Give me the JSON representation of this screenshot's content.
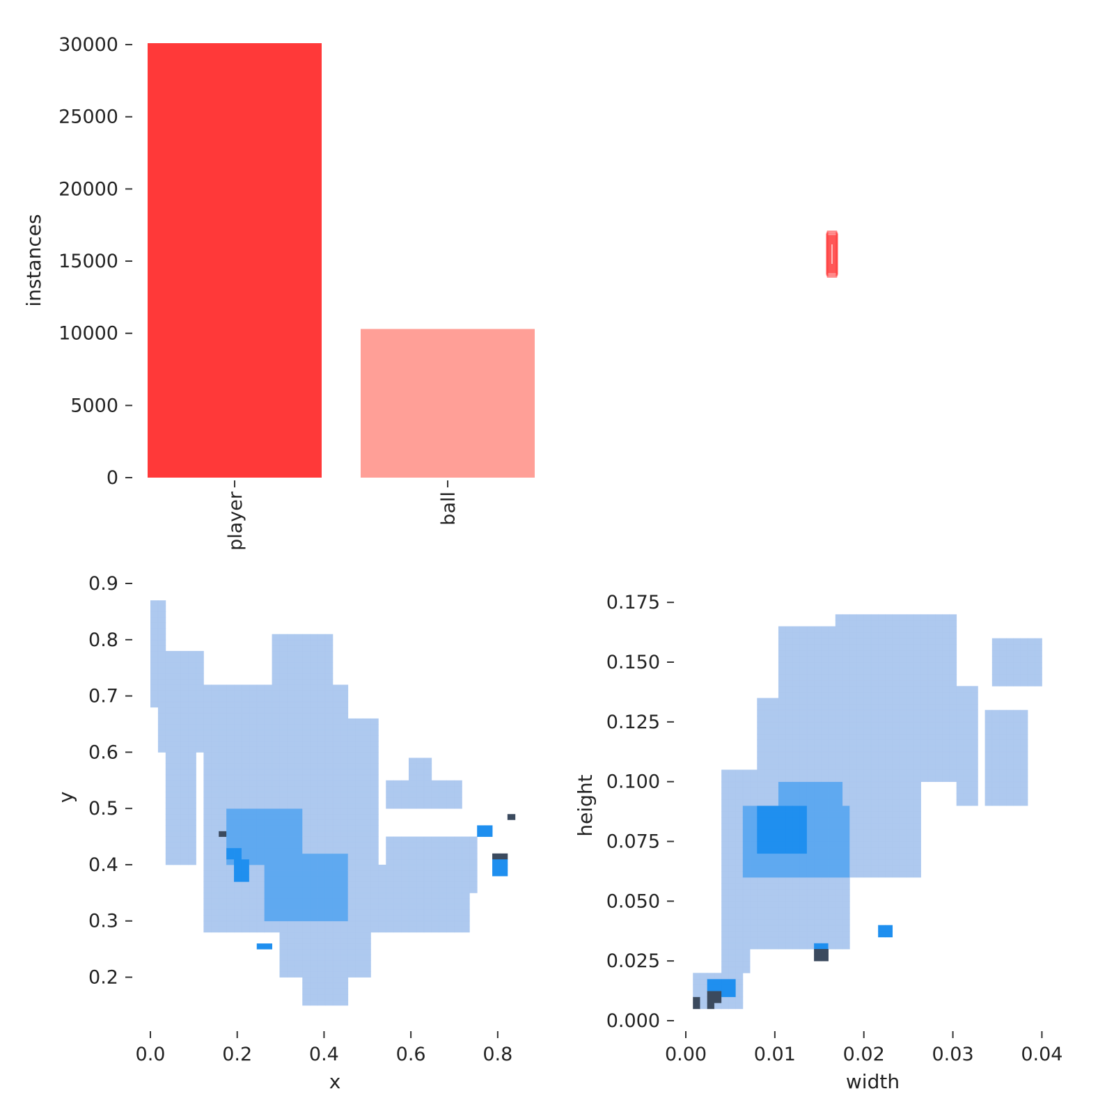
{
  "colors": {
    "bar_player": "#ff3939",
    "bar_ball": "#ff9f97",
    "hist_light": "#aac6ee",
    "hist_mid": "#5fa9f0",
    "hist_strong": "#1f8fef",
    "hist_dark": "#3b4a5e",
    "tick": "#333333"
  },
  "chart_data": [
    {
      "type": "bar",
      "categories": [
        "player",
        "ball"
      ],
      "values": [
        30100,
        10300
      ],
      "ylabel": "instances",
      "xlabel": "",
      "ylim": [
        0,
        30100
      ],
      "yticks": [
        "0",
        "5000",
        "10000",
        "15000",
        "20000",
        "25000",
        "30000"
      ],
      "grid": false
    },
    {
      "type": "other",
      "description_free": true,
      "box": {
        "x_center": 0.5,
        "y_center": 0.5,
        "width": 0.0125,
        "height": 0.085
      },
      "color": "#ff3939"
    },
    {
      "type": "heatmap",
      "xlabel": "x",
      "ylabel": "y",
      "xlim": [
        0.0,
        0.85
      ],
      "ylim": [
        0.14,
        0.9
      ],
      "xticks": [
        "0.0",
        "0.2",
        "0.4",
        "0.6",
        "0.8"
      ],
      "yticks": [
        "0.2",
        "0.3",
        "0.4",
        "0.5",
        "0.6",
        "0.7",
        "0.8",
        "0.9"
      ],
      "bin_size": [
        0.0175,
        0.01
      ],
      "density_regions": [
        {
          "x": [
            0.0,
            0.02
          ],
          "y": [
            0.68,
            0.87
          ],
          "level": 1
        },
        {
          "x": [
            0.02,
            0.12
          ],
          "y": [
            0.6,
            0.78
          ],
          "level": 1
        },
        {
          "x": [
            0.04,
            0.1
          ],
          "y": [
            0.4,
            0.6
          ],
          "level": 1
        },
        {
          "x": [
            0.12,
            0.45
          ],
          "y": [
            0.48,
            0.72
          ],
          "level": 1
        },
        {
          "x": [
            0.13,
            0.52
          ],
          "y": [
            0.28,
            0.5
          ],
          "level": 1
        },
        {
          "x": [
            0.28,
            0.42
          ],
          "y": [
            0.72,
            0.81
          ],
          "level": 1
        },
        {
          "x": [
            0.38,
            0.52
          ],
          "y": [
            0.5,
            0.66
          ],
          "level": 1
        },
        {
          "x": [
            0.45,
            0.72
          ],
          "y": [
            0.28,
            0.4
          ],
          "level": 1
        },
        {
          "x": [
            0.55,
            0.76
          ],
          "y": [
            0.35,
            0.45
          ],
          "level": 1
        },
        {
          "x": [
            0.55,
            0.72
          ],
          "y": [
            0.5,
            0.55
          ],
          "level": 1
        },
        {
          "x": [
            0.3,
            0.5
          ],
          "y": [
            0.2,
            0.3
          ],
          "level": 1
        },
        {
          "x": [
            0.35,
            0.44
          ],
          "y": [
            0.15,
            0.2
          ],
          "level": 1
        },
        {
          "x": [
            0.6,
            0.65
          ],
          "y": [
            0.55,
            0.59
          ],
          "level": 1
        },
        {
          "x": [
            0.26,
            0.44
          ],
          "y": [
            0.3,
            0.42
          ],
          "level": 2
        },
        {
          "x": [
            0.17,
            0.34
          ],
          "y": [
            0.4,
            0.5
          ],
          "level": 2
        },
        {
          "x": [
            0.17,
            0.2
          ],
          "y": [
            0.41,
            0.43
          ],
          "level": 3
        },
        {
          "x": [
            0.2,
            0.23
          ],
          "y": [
            0.37,
            0.41
          ],
          "level": 3
        },
        {
          "x": [
            0.76,
            0.78
          ],
          "y": [
            0.45,
            0.47
          ],
          "level": 3
        },
        {
          "x": [
            0.78,
            0.81
          ],
          "y": [
            0.38,
            0.42
          ],
          "level": 3
        },
        {
          "x": [
            0.25,
            0.27
          ],
          "y": [
            0.25,
            0.26
          ],
          "level": 3
        },
        {
          "x": [
            0.16,
            0.17
          ],
          "y": [
            0.45,
            0.46
          ],
          "level": 4
        },
        {
          "x": [
            0.78,
            0.8
          ],
          "y": [
            0.41,
            0.42
          ],
          "level": 4
        },
        {
          "x": [
            0.83,
            0.84
          ],
          "y": [
            0.48,
            0.49
          ],
          "level": 4
        }
      ],
      "grid": false
    },
    {
      "type": "heatmap",
      "xlabel": "width",
      "ylabel": "height",
      "xlim": [
        0.0,
        0.042
      ],
      "ylim": [
        0.0,
        0.18
      ],
      "xticks": [
        "0.00",
        "0.01",
        "0.02",
        "0.03",
        "0.04"
      ],
      "yticks": [
        "0.000",
        "0.025",
        "0.050",
        "0.075",
        "0.100",
        "0.125",
        "0.150",
        "0.175"
      ],
      "bin_size": [
        0.0008,
        0.0025
      ],
      "density_regions": [
        {
          "x": [
            0.0043,
            0.018
          ],
          "y": [
            0.03,
            0.105
          ],
          "level": 1
        },
        {
          "x": [
            0.008,
            0.026
          ],
          "y": [
            0.06,
            0.135
          ],
          "level": 1
        },
        {
          "x": [
            0.01,
            0.022
          ],
          "y": [
            0.125,
            0.165
          ],
          "level": 1
        },
        {
          "x": [
            0.017,
            0.03
          ],
          "y": [
            0.1,
            0.17
          ],
          "level": 1
        },
        {
          "x": [
            0.026,
            0.033
          ],
          "y": [
            0.1,
            0.14
          ],
          "level": 1
        },
        {
          "x": [
            0.03,
            0.038
          ],
          "y": [
            0.09,
            0.13
          ],
          "level": 1
        },
        {
          "x": [
            0.034,
            0.039
          ],
          "y": [
            0.14,
            0.16
          ],
          "level": 1
        },
        {
          "x": [
            0.001,
            0.006
          ],
          "y": [
            0.005,
            0.02
          ],
          "level": 1
        },
        {
          "x": [
            0.004,
            0.007
          ],
          "y": [
            0.02,
            0.03
          ],
          "level": 1
        },
        {
          "x": [
            0.0065,
            0.018
          ],
          "y": [
            0.06,
            0.09
          ],
          "level": 2
        },
        {
          "x": [
            0.01,
            0.017
          ],
          "y": [
            0.085,
            0.1
          ],
          "level": 2
        },
        {
          "x": [
            0.008,
            0.013
          ],
          "y": [
            0.07,
            0.09
          ],
          "level": 3
        },
        {
          "x": [
            0.002,
            0.005
          ],
          "y": [
            0.01,
            0.016
          ],
          "level": 3
        },
        {
          "x": [
            0.0215,
            0.023
          ],
          "y": [
            0.035,
            0.04
          ],
          "level": 3
        },
        {
          "x": [
            0.0146,
            0.016
          ],
          "y": [
            0.027,
            0.03
          ],
          "level": 3
        },
        {
          "x": [
            0.0012,
            0.0025
          ],
          "y": [
            0.004,
            0.008
          ],
          "level": 4
        },
        {
          "x": [
            0.0023,
            0.0035
          ],
          "y": [
            0.007,
            0.011
          ],
          "level": 4
        },
        {
          "x": [
            0.0146,
            0.016
          ],
          "y": [
            0.024,
            0.028
          ],
          "level": 4
        }
      ],
      "grid": false
    }
  ]
}
